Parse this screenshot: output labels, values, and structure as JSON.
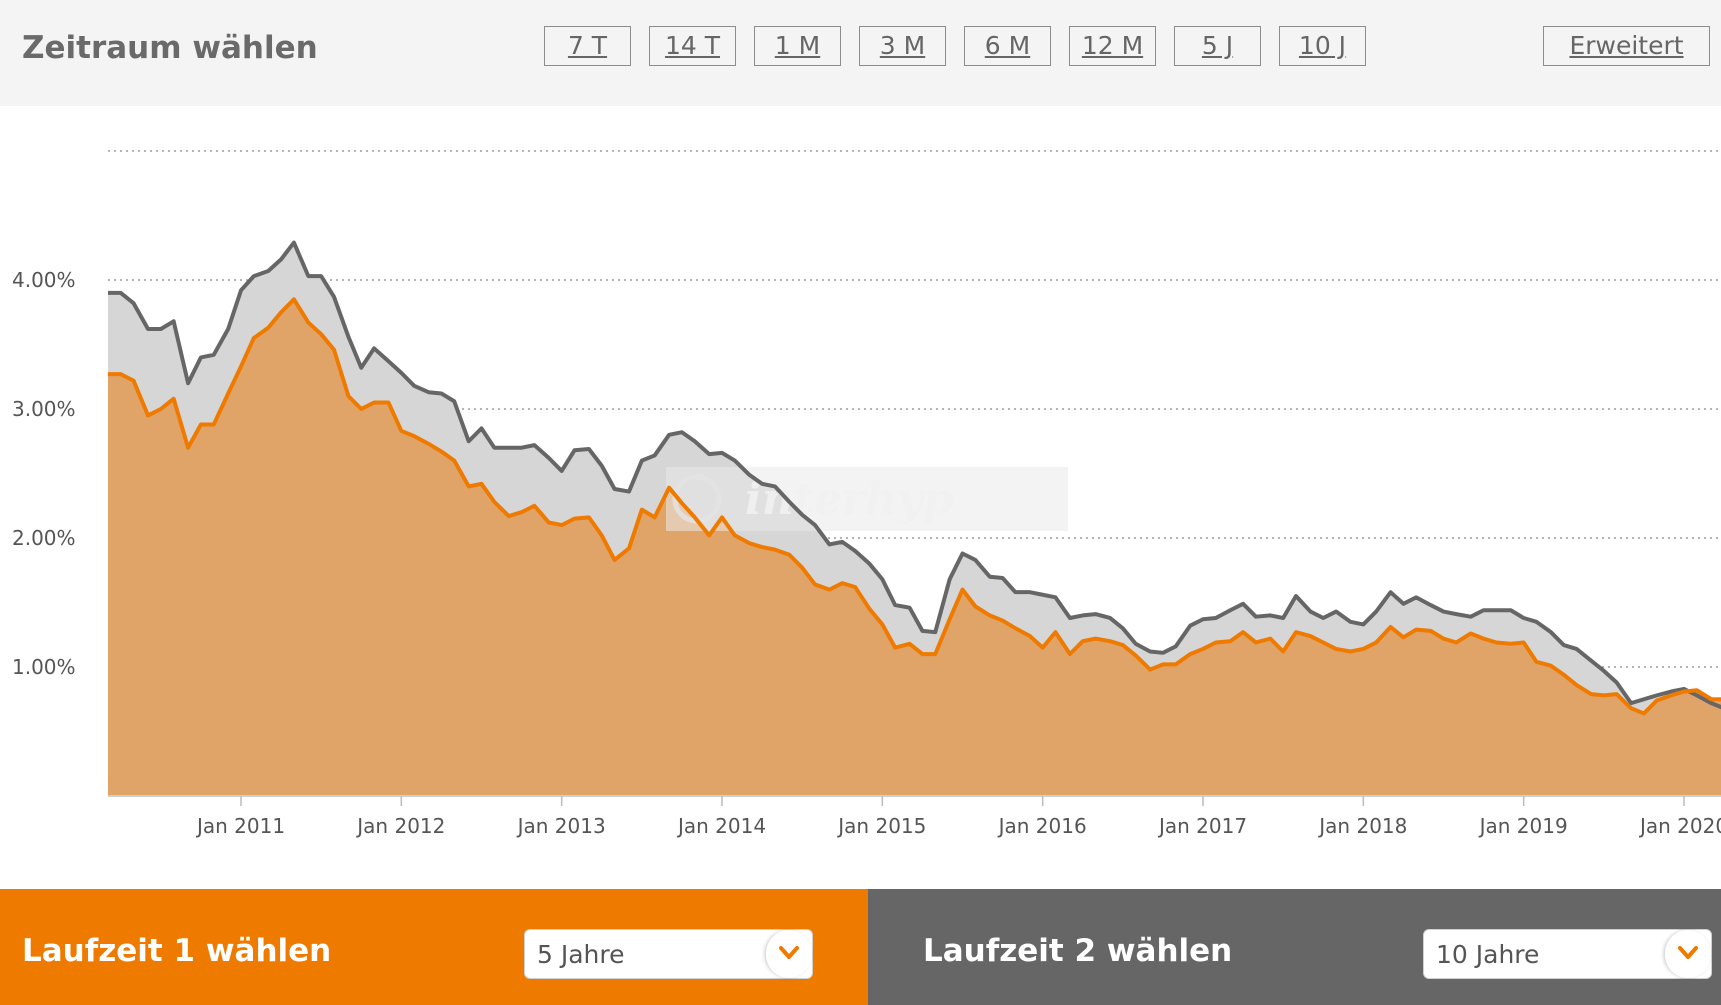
{
  "header": {
    "title": "Zeitraum wählen",
    "range_buttons": [
      "7 T",
      "14 T",
      "1 M",
      "3 M",
      "6 M",
      "12 M",
      "5 J",
      "10 J"
    ],
    "advanced_label": "Erweitert"
  },
  "watermark": "interhyp",
  "bottom": {
    "term1_label": "Laufzeit 1 wählen",
    "term1_value": "5 Jahre",
    "term2_label": "Laufzeit 2 wählen",
    "term2_value": "10 Jahre"
  },
  "colors": {
    "orange": "#ef7a00",
    "orange_fill": "#e0a468",
    "gray_line": "#666666",
    "gray_fill": "#d6d6d6"
  },
  "icons": [
    "chevron-down-icon",
    "interhyp-logo-icon"
  ],
  "chart_data": {
    "type": "area",
    "title": "",
    "xlabel": "",
    "ylabel": "",
    "ylim": [
      0,
      5
    ],
    "yticks": [
      1,
      2,
      3,
      4
    ],
    "ytick_labels": [
      "1.00%",
      "2.00%",
      "3.00%",
      "4.00%"
    ],
    "xlim": [
      2010.17,
      2020.33
    ],
    "xticks": [
      2011,
      2012,
      2013,
      2014,
      2015,
      2016,
      2017,
      2018,
      2019,
      2020
    ],
    "xtick_labels": [
      "Jan 2011",
      "Jan 2012",
      "Jan 2013",
      "Jan 2014",
      "Jan 2015",
      "Jan 2016",
      "Jan 2017",
      "Jan 2018",
      "Jan 2019",
      "Jan 2020"
    ],
    "grid": "horizontal-dotted",
    "series": [
      {
        "name": "10 Jahre",
        "color": "#666666",
        "points": [
          [
            2010.17,
            3.9
          ],
          [
            2010.25,
            3.9
          ],
          [
            2010.33,
            3.82
          ],
          [
            2010.42,
            3.62
          ],
          [
            2010.5,
            3.62
          ],
          [
            2010.58,
            3.68
          ],
          [
            2010.67,
            3.2
          ],
          [
            2010.75,
            3.4
          ],
          [
            2010.83,
            3.42
          ],
          [
            2010.92,
            3.62
          ],
          [
            2011,
            3.92
          ],
          [
            2011.08,
            4.03
          ],
          [
            2011.17,
            4.07
          ],
          [
            2011.25,
            4.16
          ],
          [
            2011.33,
            4.29
          ],
          [
            2011.42,
            4.03
          ],
          [
            2011.5,
            4.03
          ],
          [
            2011.58,
            3.87
          ],
          [
            2011.67,
            3.56
          ],
          [
            2011.75,
            3.32
          ],
          [
            2011.83,
            3.47
          ],
          [
            2011.92,
            3.37
          ],
          [
            2012,
            3.28
          ],
          [
            2012.08,
            3.18
          ],
          [
            2012.17,
            3.13
          ],
          [
            2012.25,
            3.12
          ],
          [
            2012.33,
            3.06
          ],
          [
            2012.42,
            2.75
          ],
          [
            2012.5,
            2.85
          ],
          [
            2012.58,
            2.7
          ],
          [
            2012.67,
            2.7
          ],
          [
            2012.75,
            2.7
          ],
          [
            2012.83,
            2.72
          ],
          [
            2012.92,
            2.62
          ],
          [
            2013,
            2.52
          ],
          [
            2013.08,
            2.68
          ],
          [
            2013.17,
            2.69
          ],
          [
            2013.25,
            2.56
          ],
          [
            2013.33,
            2.38
          ],
          [
            2013.42,
            2.36
          ],
          [
            2013.5,
            2.6
          ],
          [
            2013.58,
            2.64
          ],
          [
            2013.67,
            2.8
          ],
          [
            2013.75,
            2.82
          ],
          [
            2013.83,
            2.75
          ],
          [
            2013.92,
            2.65
          ],
          [
            2014,
            2.66
          ],
          [
            2014.08,
            2.6
          ],
          [
            2014.17,
            2.49
          ],
          [
            2014.25,
            2.42
          ],
          [
            2014.33,
            2.4
          ],
          [
            2014.42,
            2.28
          ],
          [
            2014.5,
            2.18
          ],
          [
            2014.58,
            2.1
          ],
          [
            2014.67,
            1.95
          ],
          [
            2014.75,
            1.97
          ],
          [
            2014.83,
            1.9
          ],
          [
            2014.92,
            1.8
          ],
          [
            2015,
            1.68
          ],
          [
            2015.08,
            1.48
          ],
          [
            2015.17,
            1.46
          ],
          [
            2015.25,
            1.28
          ],
          [
            2015.33,
            1.27
          ],
          [
            2015.42,
            1.68
          ],
          [
            2015.5,
            1.88
          ],
          [
            2015.58,
            1.83
          ],
          [
            2015.67,
            1.7
          ],
          [
            2015.75,
            1.69
          ],
          [
            2015.83,
            1.58
          ],
          [
            2015.92,
            1.58
          ],
          [
            2016,
            1.56
          ],
          [
            2016.08,
            1.54
          ],
          [
            2016.17,
            1.38
          ],
          [
            2016.25,
            1.4
          ],
          [
            2016.33,
            1.41
          ],
          [
            2016.42,
            1.38
          ],
          [
            2016.5,
            1.3
          ],
          [
            2016.58,
            1.18
          ],
          [
            2016.67,
            1.12
          ],
          [
            2016.75,
            1.11
          ],
          [
            2016.83,
            1.16
          ],
          [
            2016.92,
            1.32
          ],
          [
            2017,
            1.37
          ],
          [
            2017.08,
            1.38
          ],
          [
            2017.17,
            1.44
          ],
          [
            2017.25,
            1.49
          ],
          [
            2017.33,
            1.39
          ],
          [
            2017.42,
            1.4
          ],
          [
            2017.5,
            1.38
          ],
          [
            2017.58,
            1.55
          ],
          [
            2017.67,
            1.43
          ],
          [
            2017.75,
            1.38
          ],
          [
            2017.83,
            1.43
          ],
          [
            2017.92,
            1.35
          ],
          [
            2018,
            1.33
          ],
          [
            2018.08,
            1.43
          ],
          [
            2018.17,
            1.58
          ],
          [
            2018.25,
            1.49
          ],
          [
            2018.33,
            1.54
          ],
          [
            2018.42,
            1.48
          ],
          [
            2018.5,
            1.43
          ],
          [
            2018.58,
            1.41
          ],
          [
            2018.67,
            1.39
          ],
          [
            2018.75,
            1.44
          ],
          [
            2018.83,
            1.44
          ],
          [
            2018.92,
            1.44
          ],
          [
            2019,
            1.38
          ],
          [
            2019.08,
            1.35
          ],
          [
            2019.17,
            1.27
          ],
          [
            2019.25,
            1.17
          ],
          [
            2019.33,
            1.14
          ],
          [
            2019.42,
            1.05
          ],
          [
            2019.5,
            0.97
          ],
          [
            2019.58,
            0.88
          ],
          [
            2019.67,
            0.72
          ],
          [
            2019.75,
            0.75
          ],
          [
            2019.83,
            0.78
          ],
          [
            2019.92,
            0.81
          ],
          [
            2020,
            0.83
          ],
          [
            2020.08,
            0.78
          ],
          [
            2020.17,
            0.72
          ],
          [
            2020.25,
            0.68
          ],
          [
            2020.33,
            0.68
          ]
        ]
      },
      {
        "name": "5 Jahre",
        "color": "#ef7a00",
        "points": [
          [
            2010.17,
            3.27
          ],
          [
            2010.25,
            3.27
          ],
          [
            2010.33,
            3.22
          ],
          [
            2010.42,
            2.95
          ],
          [
            2010.5,
            3.0
          ],
          [
            2010.58,
            3.08
          ],
          [
            2010.67,
            2.7
          ],
          [
            2010.75,
            2.88
          ],
          [
            2010.83,
            2.88
          ],
          [
            2010.92,
            3.12
          ],
          [
            2011,
            3.33
          ],
          [
            2011.08,
            3.55
          ],
          [
            2011.17,
            3.63
          ],
          [
            2011.25,
            3.75
          ],
          [
            2011.33,
            3.85
          ],
          [
            2011.42,
            3.67
          ],
          [
            2011.5,
            3.58
          ],
          [
            2011.58,
            3.46
          ],
          [
            2011.67,
            3.1
          ],
          [
            2011.75,
            3.0
          ],
          [
            2011.83,
            3.05
          ],
          [
            2011.92,
            3.05
          ],
          [
            2012,
            2.83
          ],
          [
            2012.08,
            2.79
          ],
          [
            2012.17,
            2.73
          ],
          [
            2012.25,
            2.67
          ],
          [
            2012.33,
            2.6
          ],
          [
            2012.42,
            2.4
          ],
          [
            2012.5,
            2.42
          ],
          [
            2012.58,
            2.28
          ],
          [
            2012.67,
            2.17
          ],
          [
            2012.75,
            2.2
          ],
          [
            2012.83,
            2.25
          ],
          [
            2012.92,
            2.12
          ],
          [
            2013,
            2.1
          ],
          [
            2013.08,
            2.15
          ],
          [
            2013.17,
            2.16
          ],
          [
            2013.25,
            2.02
          ],
          [
            2013.33,
            1.83
          ],
          [
            2013.42,
            1.92
          ],
          [
            2013.5,
            2.22
          ],
          [
            2013.58,
            2.16
          ],
          [
            2013.67,
            2.39
          ],
          [
            2013.75,
            2.27
          ],
          [
            2013.83,
            2.16
          ],
          [
            2013.92,
            2.02
          ],
          [
            2014,
            2.16
          ],
          [
            2014.08,
            2.02
          ],
          [
            2014.17,
            1.96
          ],
          [
            2014.25,
            1.93
          ],
          [
            2014.33,
            1.91
          ],
          [
            2014.42,
            1.87
          ],
          [
            2014.5,
            1.77
          ],
          [
            2014.58,
            1.64
          ],
          [
            2014.67,
            1.6
          ],
          [
            2014.75,
            1.65
          ],
          [
            2014.83,
            1.62
          ],
          [
            2014.92,
            1.45
          ],
          [
            2015,
            1.33
          ],
          [
            2015.08,
            1.15
          ],
          [
            2015.17,
            1.18
          ],
          [
            2015.25,
            1.1
          ],
          [
            2015.33,
            1.1
          ],
          [
            2015.42,
            1.37
          ],
          [
            2015.5,
            1.6
          ],
          [
            2015.58,
            1.47
          ],
          [
            2015.67,
            1.4
          ],
          [
            2015.75,
            1.36
          ],
          [
            2015.83,
            1.3
          ],
          [
            2015.92,
            1.24
          ],
          [
            2016,
            1.15
          ],
          [
            2016.08,
            1.27
          ],
          [
            2016.17,
            1.1
          ],
          [
            2016.25,
            1.2
          ],
          [
            2016.33,
            1.22
          ],
          [
            2016.42,
            1.2
          ],
          [
            2016.5,
            1.17
          ],
          [
            2016.58,
            1.09
          ],
          [
            2016.67,
            0.98
          ],
          [
            2016.75,
            1.02
          ],
          [
            2016.83,
            1.02
          ],
          [
            2016.92,
            1.1
          ],
          [
            2017,
            1.14
          ],
          [
            2017.08,
            1.19
          ],
          [
            2017.17,
            1.2
          ],
          [
            2017.25,
            1.27
          ],
          [
            2017.33,
            1.19
          ],
          [
            2017.42,
            1.22
          ],
          [
            2017.5,
            1.12
          ],
          [
            2017.58,
            1.27
          ],
          [
            2017.67,
            1.24
          ],
          [
            2017.75,
            1.19
          ],
          [
            2017.83,
            1.14
          ],
          [
            2017.92,
            1.12
          ],
          [
            2018,
            1.14
          ],
          [
            2018.08,
            1.19
          ],
          [
            2018.17,
            1.31
          ],
          [
            2018.25,
            1.23
          ],
          [
            2018.33,
            1.29
          ],
          [
            2018.42,
            1.28
          ],
          [
            2018.5,
            1.22
          ],
          [
            2018.58,
            1.19
          ],
          [
            2018.67,
            1.26
          ],
          [
            2018.75,
            1.22
          ],
          [
            2018.83,
            1.19
          ],
          [
            2018.92,
            1.18
          ],
          [
            2019,
            1.19
          ],
          [
            2019.08,
            1.04
          ],
          [
            2019.17,
            1.01
          ],
          [
            2019.25,
            0.94
          ],
          [
            2019.33,
            0.86
          ],
          [
            2019.42,
            0.79
          ],
          [
            2019.5,
            0.78
          ],
          [
            2019.58,
            0.79
          ],
          [
            2019.67,
            0.68
          ],
          [
            2019.75,
            0.64
          ],
          [
            2019.83,
            0.74
          ],
          [
            2019.92,
            0.78
          ],
          [
            2020,
            0.81
          ],
          [
            2020.08,
            0.82
          ],
          [
            2020.17,
            0.75
          ],
          [
            2020.25,
            0.75
          ],
          [
            2020.33,
            0.75
          ]
        ]
      }
    ]
  }
}
